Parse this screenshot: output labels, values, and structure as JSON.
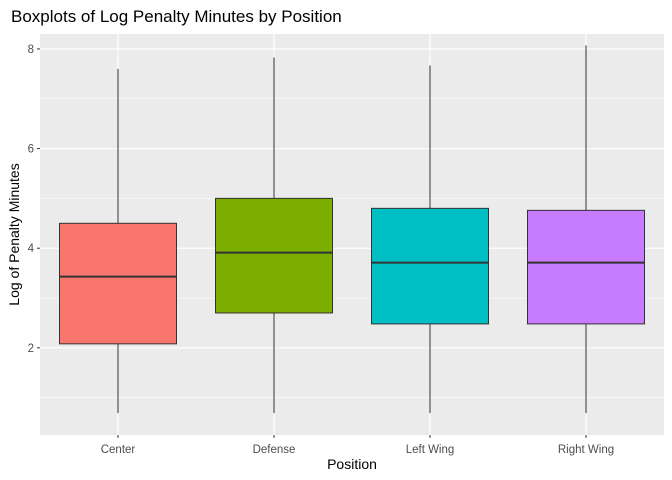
{
  "chart_data": {
    "type": "boxplot",
    "title": "Boxplots of Log Penalty Minutes by Position",
    "xlabel": "Position",
    "ylabel": "Log of Penalty Minutes",
    "ylim": [
      0.25,
      8.3
    ],
    "yticks": [
      2,
      4,
      6,
      8
    ],
    "grid": true,
    "legend": "none",
    "categories": [
      "Center",
      "Defense",
      "Left Wing",
      "Right Wing"
    ],
    "boxes": [
      {
        "category": "Center",
        "min": 0.69,
        "q1": 2.08,
        "median": 3.43,
        "q3": 4.5,
        "max": 7.6,
        "color": "#F8766D"
      },
      {
        "category": "Defense",
        "min": 0.69,
        "q1": 2.7,
        "median": 3.91,
        "q3": 5.0,
        "max": 7.83,
        "color": "#7CAE00"
      },
      {
        "category": "Left Wing",
        "min": 0.69,
        "q1": 2.48,
        "median": 3.71,
        "q3": 4.8,
        "max": 7.67,
        "color": "#00BFC4"
      },
      {
        "category": "Right Wing",
        "min": 0.69,
        "q1": 2.48,
        "median": 3.71,
        "q3": 4.76,
        "max": 8.07,
        "color": "#C77CFF"
      }
    ]
  }
}
